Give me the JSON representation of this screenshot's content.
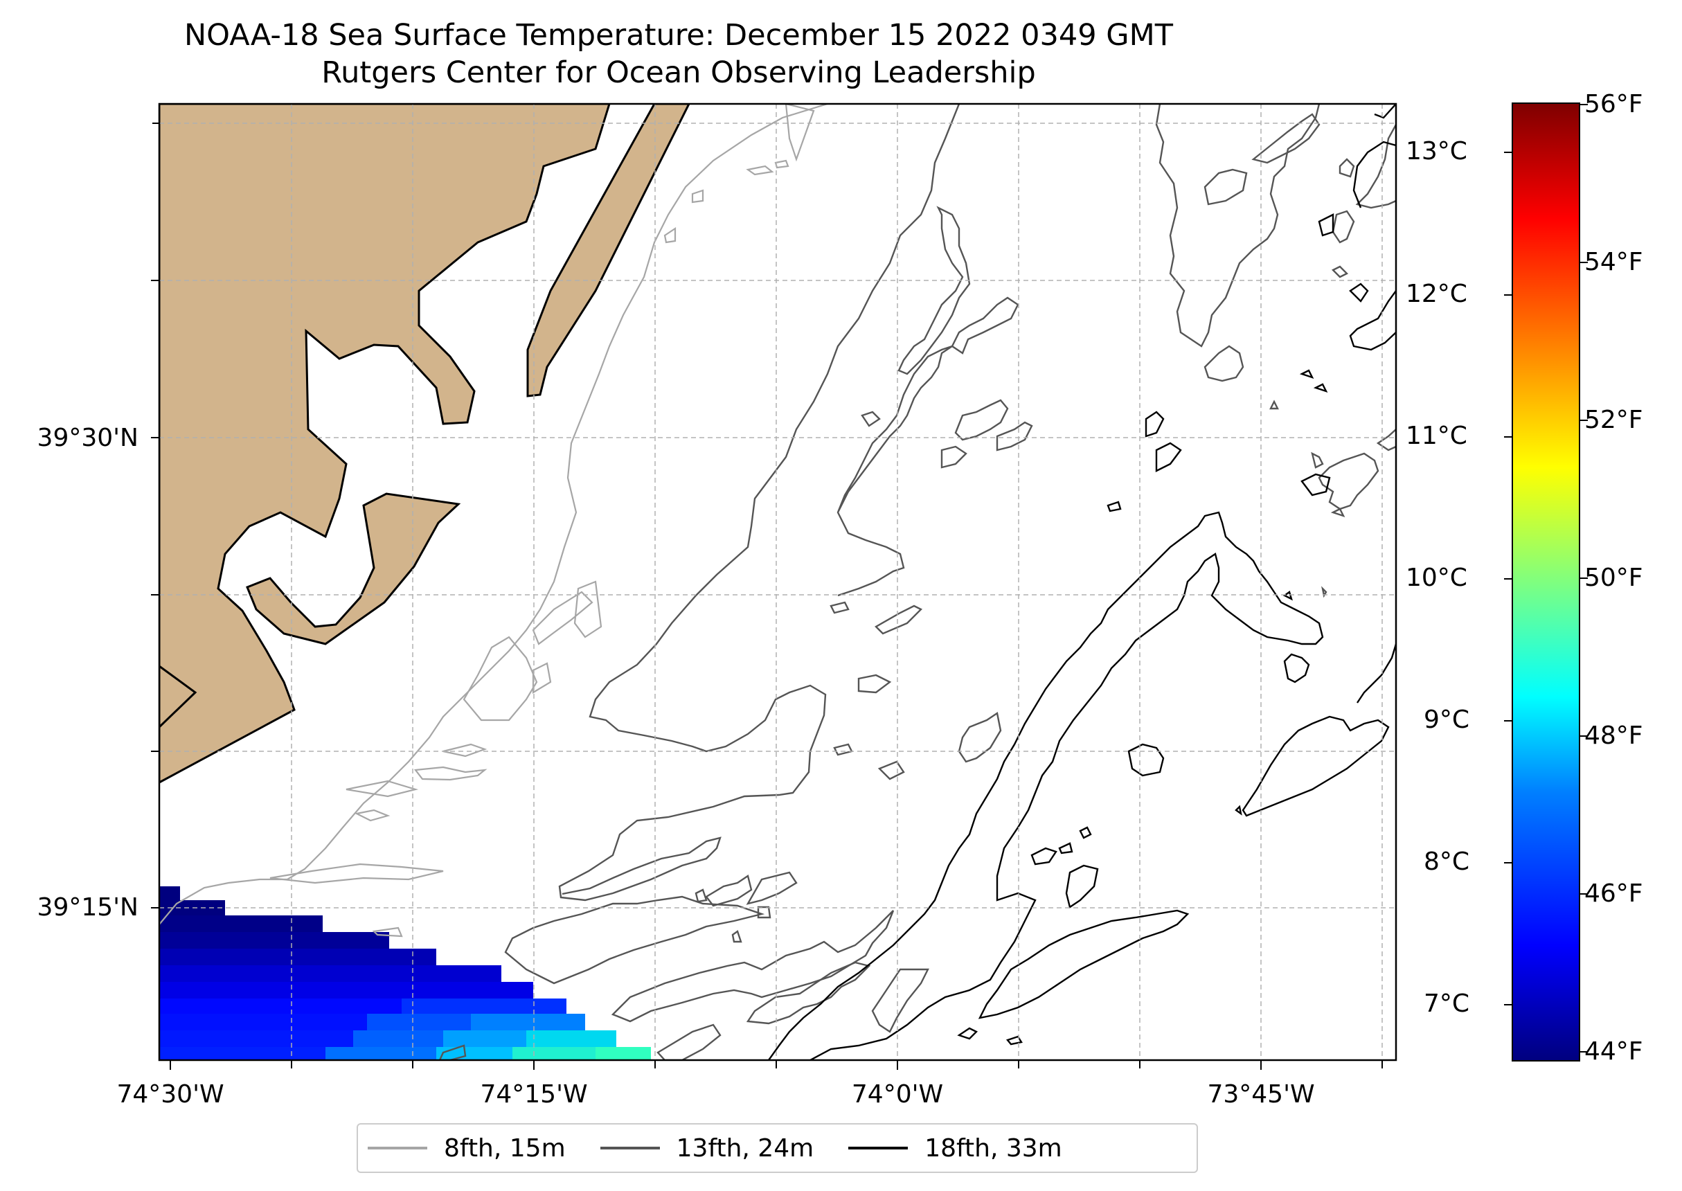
{
  "title": {
    "line1": "NOAA-18 Sea Surface Temperature: December 15 2022 0349 GMT",
    "line2": "Rutgers Center for Ocean Observing Leadership"
  },
  "map": {
    "land_color": "#d2b48c",
    "grid_style": "dashed",
    "lat_ticks": [
      "39°30'N",
      "39°15'N"
    ],
    "lon_ticks": [
      "74°30'W",
      "74°15'W",
      "74°0'W",
      "73°45'W"
    ]
  },
  "colorbar": {
    "colormap": "jet",
    "celsius_ticks": [
      "13°C",
      "12°C",
      "11°C",
      "10°C",
      "9°C",
      "8°C",
      "7°C"
    ],
    "fahrenheit_ticks": [
      "56°F",
      "54°F",
      "52°F",
      "50°F",
      "48°F",
      "46°F",
      "44°F"
    ]
  },
  "legend": {
    "items": [
      {
        "label": "8fth, 15m",
        "color": "#a6a6a6"
      },
      {
        "label": "13fth, 24m",
        "color": "#555555"
      },
      {
        "label": "18fth, 33m",
        "color": "#000000"
      }
    ]
  }
}
